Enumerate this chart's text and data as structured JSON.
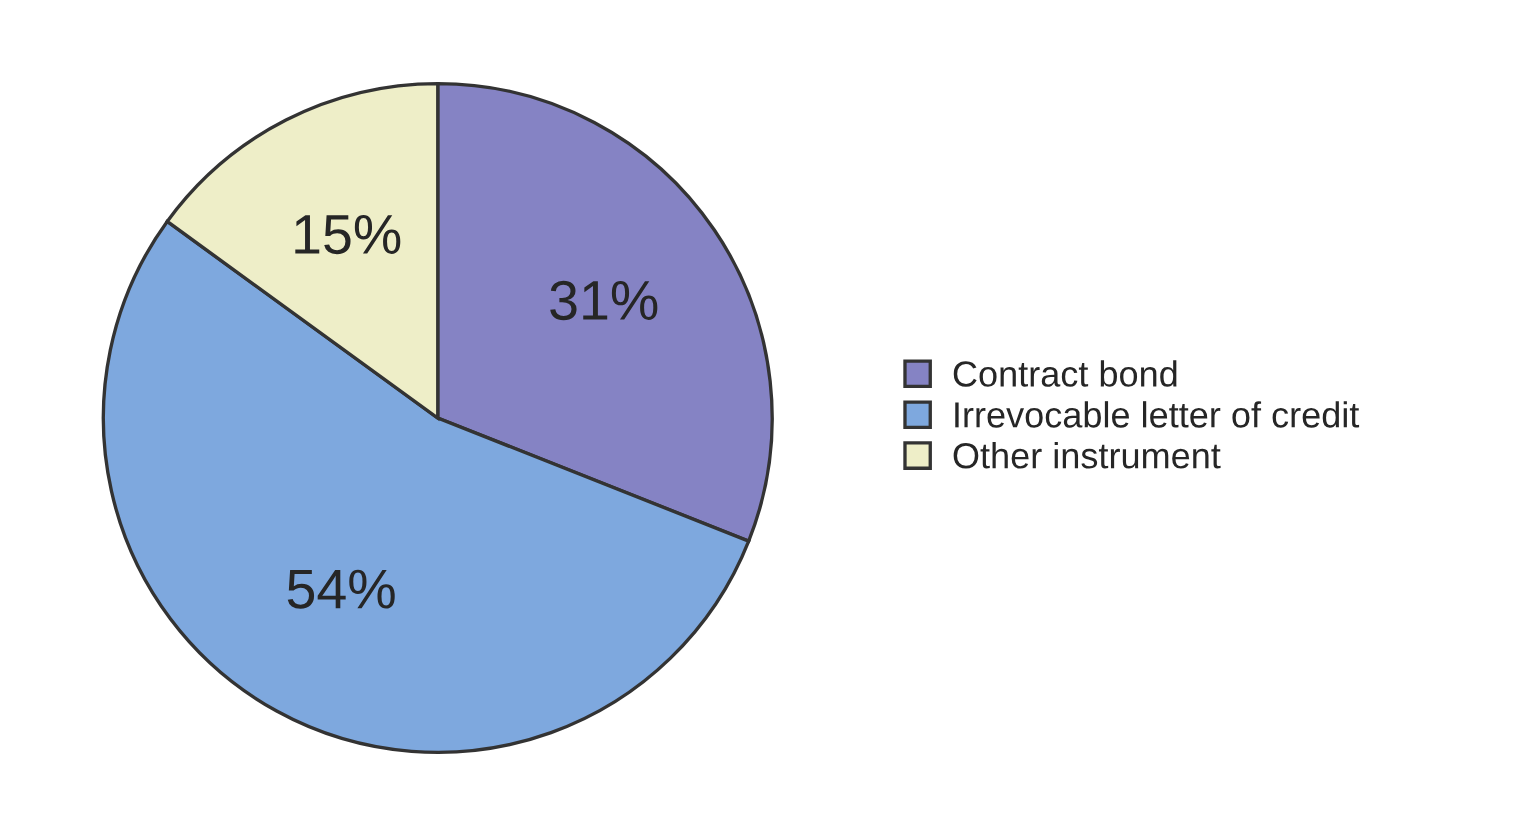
{
  "chart_data": {
    "type": "pie",
    "categories": [
      "Contract bond",
      "Irrevocable letter of credit",
      "Other instrument"
    ],
    "values": [
      31,
      54,
      15
    ],
    "colors": [
      "#8583c4",
      "#7ea8de",
      "#eeeec8"
    ],
    "value_labels": [
      "31%",
      "54%",
      "15%"
    ],
    "legend": "right"
  }
}
